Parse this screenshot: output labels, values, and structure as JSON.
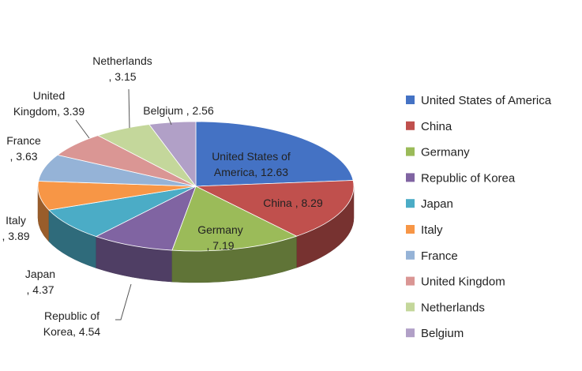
{
  "chart_data": {
    "type": "pie",
    "style": "3d",
    "categories": [
      "United States of America",
      "China",
      "Germany",
      "Republic of Korea",
      "Japan",
      "Italy",
      "France",
      "United Kingdom",
      "Netherlands",
      "Belgium"
    ],
    "values": [
      12.63,
      8.29,
      7.19,
      4.54,
      4.37,
      3.89,
      3.63,
      3.39,
      3.15,
      2.56
    ],
    "slice_labels": [
      [
        "United States of",
        "America, 12.63"
      ],
      [
        "China , 8.29"
      ],
      [
        "Germany",
        ", 7.19"
      ],
      [
        "Republic of",
        "Korea, 4.54"
      ],
      [
        "Japan",
        ", 4.37"
      ],
      [
        "Italy",
        ", 3.89"
      ],
      [
        "France",
        ", 3.63"
      ],
      [
        "United",
        "Kingdom, 3.39"
      ],
      [
        "Netherlands",
        ", 3.15"
      ],
      [
        "Belgium , 2.56"
      ]
    ],
    "colors": [
      "#4472C4",
      "#C0504D",
      "#9BBB59",
      "#8064A2",
      "#4BACC6",
      "#F79646",
      "#95B3D7",
      "#DA9694",
      "#C4D79B",
      "#B1A0C7"
    ],
    "legend": {
      "position": "right",
      "entries": [
        "United States of America",
        "China",
        "Germany",
        "Republic of Korea",
        "Japan",
        "Italy",
        "France",
        "United Kingdom",
        "Netherlands",
        "Belgium"
      ]
    }
  }
}
